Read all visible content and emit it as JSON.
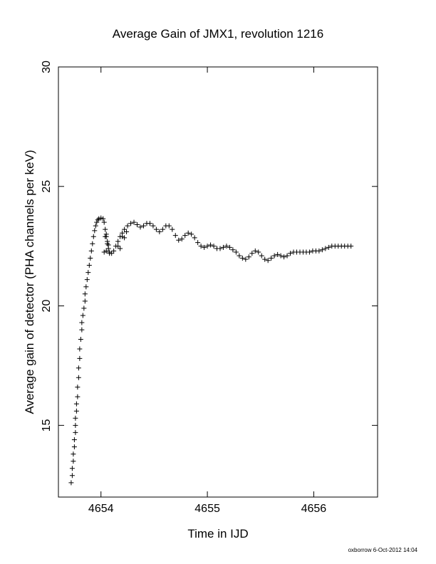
{
  "chart_data": {
    "type": "scatter",
    "title": "Average Gain of JMX1, revolution 1216",
    "xlabel": "Time in IJD",
    "ylabel": "Average gain of detector (PHA channels per keV)",
    "xlim": [
      4653.6,
      4656.6
    ],
    "ylim": [
      12.0,
      30.0
    ],
    "xticks": [
      4654,
      4655,
      4656
    ],
    "yticks": [
      15,
      20,
      25,
      30
    ],
    "grid": false,
    "marker": "plus",
    "color": "#000000",
    "series": [
      {
        "points": [
          [
            4653.72,
            12.6
          ],
          [
            4653.73,
            12.9
          ],
          [
            4653.73,
            13.2
          ],
          [
            4653.74,
            13.5
          ],
          [
            4653.74,
            13.8
          ],
          [
            4653.75,
            14.1
          ],
          [
            4653.75,
            14.4
          ],
          [
            4653.76,
            14.7
          ],
          [
            4653.76,
            15.0
          ],
          [
            4653.76,
            15.3
          ],
          [
            4653.77,
            15.6
          ],
          [
            4653.77,
            15.9
          ],
          [
            4653.78,
            16.2
          ],
          [
            4653.78,
            16.6
          ],
          [
            4653.79,
            17.0
          ],
          [
            4653.79,
            17.4
          ],
          [
            4653.8,
            17.8
          ],
          [
            4653.8,
            18.2
          ],
          [
            4653.81,
            18.6
          ],
          [
            4653.82,
            19.0
          ],
          [
            4653.82,
            19.3
          ],
          [
            4653.83,
            19.6
          ],
          [
            4653.84,
            19.9
          ],
          [
            4653.85,
            20.2
          ],
          [
            4653.85,
            20.5
          ],
          [
            4653.86,
            20.8
          ],
          [
            4653.87,
            21.1
          ],
          [
            4653.88,
            21.4
          ],
          [
            4653.89,
            21.7
          ],
          [
            4653.9,
            22.0
          ],
          [
            4653.91,
            22.3
          ],
          [
            4653.92,
            22.6
          ],
          [
            4653.93,
            22.9
          ],
          [
            4653.94,
            23.15
          ],
          [
            4653.95,
            23.35
          ],
          [
            4653.96,
            23.5
          ],
          [
            4653.97,
            23.6
          ],
          [
            4653.98,
            23.65
          ],
          [
            4654.0,
            23.68
          ],
          [
            4654.02,
            23.65
          ],
          [
            4654.03,
            23.5
          ],
          [
            4654.04,
            23.2
          ],
          [
            4654.05,
            22.9
          ],
          [
            4654.06,
            22.6
          ],
          [
            4654.07,
            22.4
          ],
          [
            4654.08,
            22.25
          ],
          [
            4654.1,
            22.2
          ],
          [
            4654.12,
            22.3
          ],
          [
            4654.14,
            22.5
          ],
          [
            4654.16,
            22.7
          ],
          [
            4654.18,
            22.9
          ],
          [
            4654.2,
            23.05
          ],
          [
            4654.22,
            23.2
          ],
          [
            4654.25,
            23.35
          ],
          [
            4654.28,
            23.45
          ],
          [
            4654.31,
            23.5
          ],
          [
            4654.34,
            23.4
          ],
          [
            4654.37,
            23.3
          ],
          [
            4654.4,
            23.35
          ],
          [
            4654.43,
            23.45
          ],
          [
            4654.46,
            23.45
          ],
          [
            4654.49,
            23.35
          ],
          [
            4654.52,
            23.2
          ],
          [
            4654.55,
            23.1
          ],
          [
            4654.58,
            23.2
          ],
          [
            4654.61,
            23.35
          ],
          [
            4654.64,
            23.35
          ],
          [
            4654.67,
            23.2
          ],
          [
            4654.7,
            22.95
          ],
          [
            4654.73,
            22.75
          ],
          [
            4654.76,
            22.8
          ],
          [
            4654.79,
            22.95
          ],
          [
            4654.82,
            23.05
          ],
          [
            4654.85,
            23.0
          ],
          [
            4654.88,
            22.85
          ],
          [
            4654.91,
            22.65
          ],
          [
            4654.94,
            22.5
          ],
          [
            4654.97,
            22.45
          ],
          [
            4655.0,
            22.5
          ],
          [
            4655.03,
            22.55
          ],
          [
            4655.06,
            22.5
          ],
          [
            4655.09,
            22.4
          ],
          [
            4655.12,
            22.4
          ],
          [
            4655.15,
            22.45
          ],
          [
            4655.18,
            22.5
          ],
          [
            4655.21,
            22.45
          ],
          [
            4655.24,
            22.35
          ],
          [
            4655.27,
            22.25
          ],
          [
            4655.3,
            22.1
          ],
          [
            4655.33,
            22.0
          ],
          [
            4655.36,
            21.95
          ],
          [
            4655.39,
            22.05
          ],
          [
            4655.42,
            22.2
          ],
          [
            4655.45,
            22.3
          ],
          [
            4655.48,
            22.25
          ],
          [
            4655.51,
            22.1
          ],
          [
            4655.54,
            21.95
          ],
          [
            4655.57,
            21.9
          ],
          [
            4655.6,
            22.0
          ],
          [
            4655.63,
            22.1
          ],
          [
            4655.66,
            22.15
          ],
          [
            4655.69,
            22.1
          ],
          [
            4655.72,
            22.05
          ],
          [
            4655.75,
            22.1
          ],
          [
            4655.78,
            22.2
          ],
          [
            4655.81,
            22.25
          ],
          [
            4655.84,
            22.25
          ],
          [
            4655.87,
            22.25
          ],
          [
            4655.9,
            22.25
          ],
          [
            4655.93,
            22.25
          ],
          [
            4655.96,
            22.25
          ],
          [
            4655.99,
            22.3
          ],
          [
            4656.02,
            22.3
          ],
          [
            4656.05,
            22.3
          ],
          [
            4656.08,
            22.35
          ],
          [
            4656.11,
            22.4
          ],
          [
            4656.14,
            22.45
          ],
          [
            4656.17,
            22.5
          ],
          [
            4656.2,
            22.5
          ],
          [
            4656.23,
            22.5
          ],
          [
            4656.26,
            22.5
          ],
          [
            4656.29,
            22.5
          ],
          [
            4656.32,
            22.5
          ],
          [
            4656.35,
            22.5
          ],
          [
            4654.05,
            22.3
          ],
          [
            4654.03,
            22.25
          ],
          [
            4654.05,
            23.0
          ],
          [
            4654.04,
            22.9
          ],
          [
            4654.06,
            22.7
          ],
          [
            4654.07,
            22.55
          ],
          [
            4654.08,
            22.2
          ],
          [
            4654.16,
            22.5
          ],
          [
            4654.18,
            22.4
          ],
          [
            4654.2,
            22.9
          ],
          [
            4654.22,
            22.85
          ],
          [
            4654.24,
            23.1
          ]
        ]
      }
    ]
  },
  "footer": {
    "credit": "oxborrow  6-Oct-2012 14:04"
  }
}
